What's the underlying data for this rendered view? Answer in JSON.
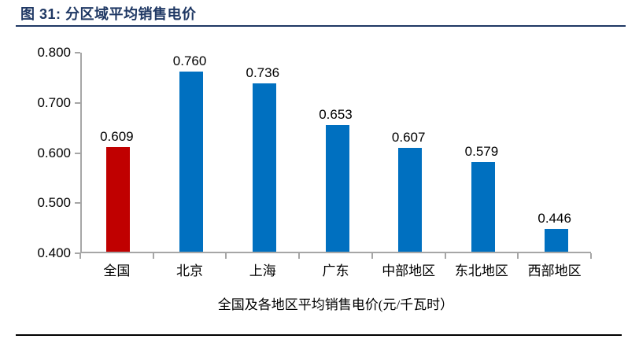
{
  "figure": {
    "label": "图  31:",
    "title": "分区域平均销售电价"
  },
  "colors": {
    "title_navy": "#1F3864",
    "bar_blue": "#0070C0",
    "bar_red": "#C00000",
    "axis_gray": "#A6A6A6",
    "text_black": "#000000"
  },
  "chart_data": {
    "type": "bar",
    "categories": [
      "全国",
      "北京",
      "上海",
      "广东",
      "中部地区",
      "东北地区",
      "西部地区"
    ],
    "values": [
      0.609,
      0.76,
      0.736,
      0.653,
      0.607,
      0.579,
      0.446
    ],
    "value_labels": [
      "0.609",
      "0.760",
      "0.736",
      "0.653",
      "0.607",
      "0.579",
      "0.446"
    ],
    "highlight_index": 0,
    "title": "",
    "xlabel": "全国及各地区平均销售电价(元/千瓦时）",
    "ylabel": "",
    "ylim": [
      0.4,
      0.8
    ],
    "y_ticks": [
      "0.800",
      "0.700",
      "0.600",
      "0.500",
      "0.400"
    ],
    "y_tick_values": [
      0.8,
      0.7,
      0.6,
      0.5,
      0.4
    ],
    "grid": false,
    "legend": null,
    "bar_colors_note": "first bar red highlight, others blue"
  }
}
